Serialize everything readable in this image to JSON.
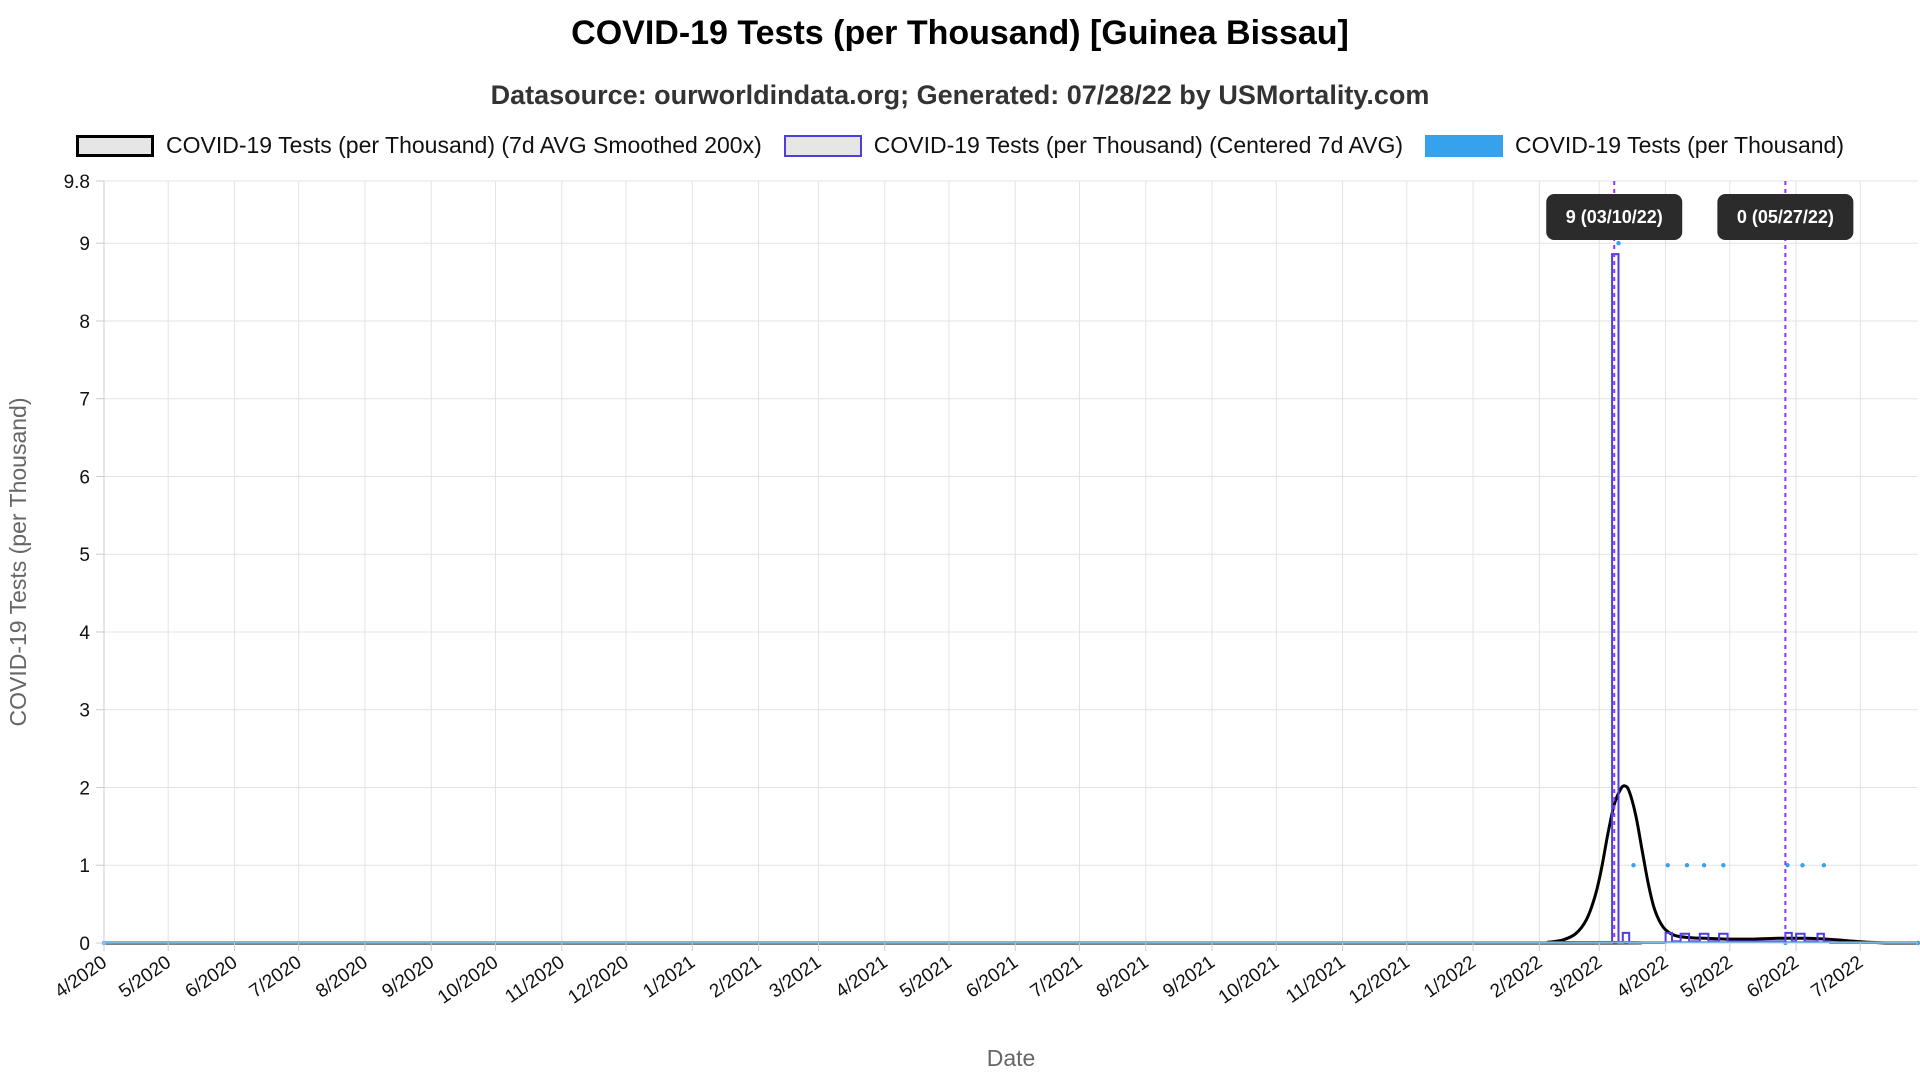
{
  "chart_data": {
    "type": "line",
    "title": "COVID-19 Tests (per Thousand) [Guinea Bissau]",
    "subtitle": "Datasource: ourworldindata.org; Generated: 07/28/22 by USMortality.com",
    "xlabel": "Date",
    "ylabel": "COVID-19 Tests (per Thousand)",
    "ylim": [
      0,
      9.8
    ],
    "y_ticks": [
      "0",
      "1",
      "2",
      "3",
      "4",
      "5",
      "6",
      "7",
      "8",
      "9",
      "9.8"
    ],
    "x_range": [
      "2020-04-01",
      "2022-07-28"
    ],
    "x_ticks": [
      {
        "date": "2020-04-01",
        "label": "4/2020"
      },
      {
        "date": "2020-05-01",
        "label": "5/2020"
      },
      {
        "date": "2020-06-01",
        "label": "6/2020"
      },
      {
        "date": "2020-07-01",
        "label": "7/2020"
      },
      {
        "date": "2020-08-01",
        "label": "8/2020"
      },
      {
        "date": "2020-09-01",
        "label": "9/2020"
      },
      {
        "date": "2020-10-01",
        "label": "10/2020"
      },
      {
        "date": "2020-11-01",
        "label": "11/2020"
      },
      {
        "date": "2020-12-01",
        "label": "12/2020"
      },
      {
        "date": "2021-01-01",
        "label": "1/2021"
      },
      {
        "date": "2021-02-01",
        "label": "2/2021"
      },
      {
        "date": "2021-03-01",
        "label": "3/2021"
      },
      {
        "date": "2021-04-01",
        "label": "4/2021"
      },
      {
        "date": "2021-05-01",
        "label": "5/2021"
      },
      {
        "date": "2021-06-01",
        "label": "6/2021"
      },
      {
        "date": "2021-07-01",
        "label": "7/2021"
      },
      {
        "date": "2021-08-01",
        "label": "8/2021"
      },
      {
        "date": "2021-09-01",
        "label": "9/2021"
      },
      {
        "date": "2021-10-01",
        "label": "10/2021"
      },
      {
        "date": "2021-11-01",
        "label": "11/2021"
      },
      {
        "date": "2021-12-01",
        "label": "12/2021"
      },
      {
        "date": "2022-01-01",
        "label": "1/2022"
      },
      {
        "date": "2022-02-01",
        "label": "2/2022"
      },
      {
        "date": "2022-03-01",
        "label": "3/2022"
      },
      {
        "date": "2022-04-01",
        "label": "4/2022"
      },
      {
        "date": "2022-05-01",
        "label": "5/2022"
      },
      {
        "date": "2022-06-01",
        "label": "6/2022"
      },
      {
        "date": "2022-07-01",
        "label": "7/2022"
      }
    ],
    "grid": true,
    "legend_position": "top",
    "series": [
      {
        "name": "COVID-19 Tests (per Thousand) (7d AVG Smoothed 200x)",
        "color": "#000000",
        "style": "smooth-line",
        "points": [
          [
            "2020-04-01",
            0
          ],
          [
            "2022-01-28",
            0
          ],
          [
            "2022-02-05",
            0.01
          ],
          [
            "2022-02-12",
            0.04
          ],
          [
            "2022-02-18",
            0.12
          ],
          [
            "2022-02-23",
            0.3
          ],
          [
            "2022-02-27",
            0.6
          ],
          [
            "2022-03-02",
            0.95
          ],
          [
            "2022-03-05",
            1.4
          ],
          [
            "2022-03-08",
            1.78
          ],
          [
            "2022-03-11",
            1.98
          ],
          [
            "2022-03-13",
            2.02
          ],
          [
            "2022-03-15",
            1.95
          ],
          [
            "2022-03-18",
            1.65
          ],
          [
            "2022-03-21",
            1.2
          ],
          [
            "2022-03-24",
            0.75
          ],
          [
            "2022-03-27",
            0.42
          ],
          [
            "2022-03-31",
            0.2
          ],
          [
            "2022-04-05",
            0.1
          ],
          [
            "2022-04-12",
            0.07
          ],
          [
            "2022-04-20",
            0.06
          ],
          [
            "2022-05-01",
            0.05
          ],
          [
            "2022-05-12",
            0.05
          ],
          [
            "2022-05-24",
            0.06
          ],
          [
            "2022-06-05",
            0.06
          ],
          [
            "2022-06-15",
            0.05
          ],
          [
            "2022-06-25",
            0.03
          ],
          [
            "2022-07-05",
            0.01
          ],
          [
            "2022-07-15",
            0
          ],
          [
            "2022-07-28",
            0
          ]
        ]
      },
      {
        "name": "COVID-19 Tests (per Thousand) (Centered 7d AVG)",
        "color": "#4b3fe0",
        "style": "step-line",
        "points": [
          [
            "2020-04-01",
            0
          ],
          [
            "2022-03-07",
            0
          ],
          [
            "2022-03-07",
            8.86
          ],
          [
            "2022-03-10",
            8.86
          ],
          [
            "2022-03-10",
            0
          ],
          [
            "2022-03-12",
            0
          ],
          [
            "2022-03-12",
            0.13
          ],
          [
            "2022-03-15",
            0.13
          ],
          [
            "2022-03-15",
            0
          ],
          [
            "2022-04-01",
            0
          ],
          [
            "2022-04-01",
            0.13
          ],
          [
            "2022-04-04",
            0.13
          ],
          [
            "2022-04-04",
            0.02
          ],
          [
            "2022-04-08",
            0.02
          ],
          [
            "2022-04-08",
            0.12
          ],
          [
            "2022-04-12",
            0.12
          ],
          [
            "2022-04-12",
            0.02
          ],
          [
            "2022-04-17",
            0.02
          ],
          [
            "2022-04-17",
            0.12
          ],
          [
            "2022-04-21",
            0.12
          ],
          [
            "2022-04-21",
            0.02
          ],
          [
            "2022-04-26",
            0.02
          ],
          [
            "2022-04-26",
            0.12
          ],
          [
            "2022-04-30",
            0.12
          ],
          [
            "2022-04-30",
            0.02
          ],
          [
            "2022-05-27",
            0.02
          ],
          [
            "2022-05-27",
            0.13
          ],
          [
            "2022-05-30",
            0.13
          ],
          [
            "2022-05-30",
            0.02
          ],
          [
            "2022-06-01",
            0.02
          ],
          [
            "2022-06-01",
            0.12
          ],
          [
            "2022-06-05",
            0.12
          ],
          [
            "2022-06-05",
            0.02
          ],
          [
            "2022-06-11",
            0.02
          ],
          [
            "2022-06-11",
            0.12
          ],
          [
            "2022-06-14",
            0.12
          ],
          [
            "2022-06-14",
            0.02
          ],
          [
            "2022-06-17",
            0.02
          ],
          [
            "2022-06-17",
            0
          ],
          [
            "2022-07-28",
            0
          ]
        ]
      },
      {
        "name": "COVID-19 Tests (per Thousand)",
        "color": "#36a2eb",
        "style": "points",
        "points": [
          [
            "2020-04-01",
            0
          ],
          [
            "2022-03-10",
            9
          ],
          [
            "2022-03-17",
            1
          ],
          [
            "2022-04-02",
            1
          ],
          [
            "2022-04-11",
            1
          ],
          [
            "2022-04-19",
            1
          ],
          [
            "2022-04-28",
            1
          ],
          [
            "2022-05-27",
            0
          ],
          [
            "2022-05-28",
            1
          ],
          [
            "2022-06-04",
            1
          ],
          [
            "2022-06-14",
            1
          ],
          [
            "2022-07-28",
            0
          ]
        ]
      }
    ],
    "annotations": [
      {
        "date": "2022-03-08",
        "label": "9 (03/10/22)",
        "color": "#9b30ff"
      },
      {
        "date": "2022-05-27",
        "label": "0 (05/27/22)",
        "color": "#9b30ff"
      }
    ]
  }
}
